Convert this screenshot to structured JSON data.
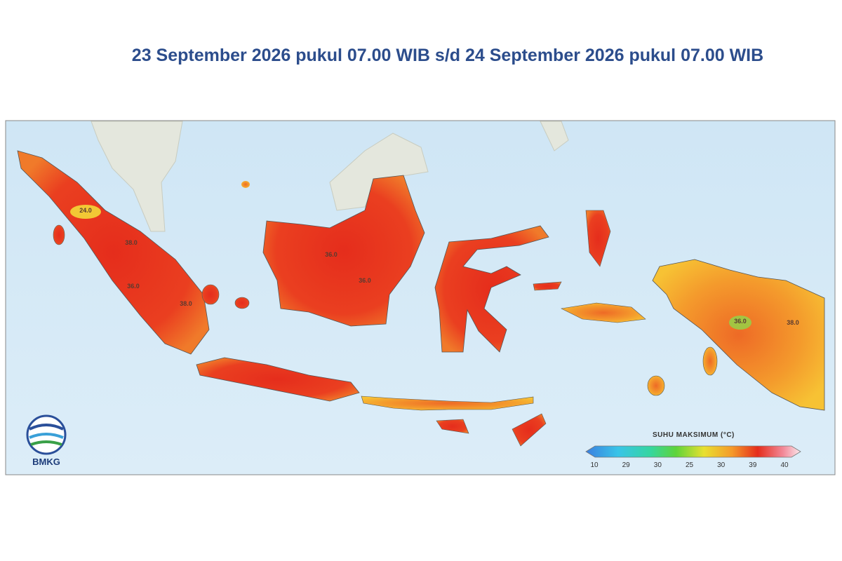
{
  "header": {
    "title": "23 September 2026 pukul 07.00 WIB s/d 24 September 2026 pukul 07.00 WIB"
  },
  "map": {
    "labels": [
      "24.0",
      "38.0",
      "36.0",
      "38.0",
      "36.0",
      "36.0",
      "36.0",
      "38.0"
    ]
  },
  "legend": {
    "title": "SUHU MAKSIMUM (°C)",
    "ticks": [
      "10",
      "29",
      "30",
      "25",
      "30",
      "39",
      "40"
    ]
  },
  "logo": {
    "text": "BMKG"
  }
}
